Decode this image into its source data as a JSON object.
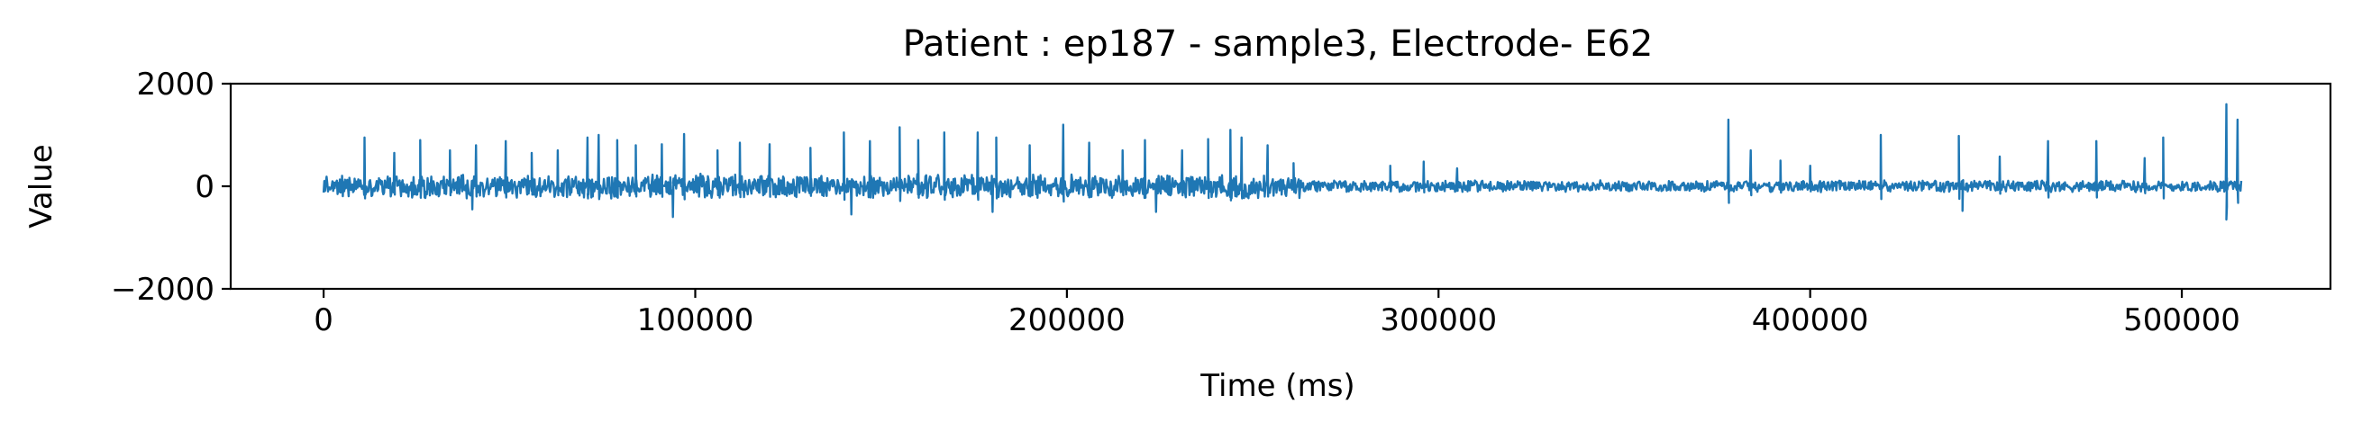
{
  "chart_data": {
    "type": "line",
    "title": "Patient : ep187 - sample3, Electrode- E62",
    "xlabel": "Time (ms)",
    "ylabel": "Value",
    "xlim": [
      -25000,
      540000
    ],
    "ylim": [
      -2000,
      2000
    ],
    "xticks": [
      0,
      100000,
      200000,
      300000,
      400000,
      500000
    ],
    "xtick_labels": [
      "0",
      "100000",
      "200000",
      "300000",
      "400000",
      "500000"
    ],
    "yticks": [
      -2000,
      0,
      2000
    ],
    "ytick_labels": [
      "−2000",
      "0",
      "2000"
    ],
    "grid": false,
    "series": [
      {
        "color": "#1f77b4",
        "x_start": 0,
        "x_end": 516000,
        "baseline_amplitude_first_half": 250,
        "baseline_amplitude_second_half": 120,
        "peaks": [
          {
            "x": 11000,
            "y": 950
          },
          {
            "x": 19000,
            "y": 650
          },
          {
            "x": 26000,
            "y": 900
          },
          {
            "x": 34000,
            "y": 700
          },
          {
            "x": 41000,
            "y": 800
          },
          {
            "x": 49000,
            "y": 880
          },
          {
            "x": 56000,
            "y": 650
          },
          {
            "x": 63000,
            "y": 700
          },
          {
            "x": 71000,
            "y": 950
          },
          {
            "x": 74000,
            "y": 1000
          },
          {
            "x": 79000,
            "y": 900
          },
          {
            "x": 84000,
            "y": 800
          },
          {
            "x": 91000,
            "y": 820
          },
          {
            "x": 97000,
            "y": 1020
          },
          {
            "x": 106000,
            "y": 700
          },
          {
            "x": 112000,
            "y": 850
          },
          {
            "x": 120000,
            "y": 820
          },
          {
            "x": 131000,
            "y": 750
          },
          {
            "x": 140000,
            "y": 1050
          },
          {
            "x": 147000,
            "y": 880
          },
          {
            "x": 155000,
            "y": 1150
          },
          {
            "x": 160000,
            "y": 900
          },
          {
            "x": 167000,
            "y": 1050
          },
          {
            "x": 176000,
            "y": 1050
          },
          {
            "x": 181000,
            "y": 950
          },
          {
            "x": 190000,
            "y": 800
          },
          {
            "x": 199000,
            "y": 1200
          },
          {
            "x": 206000,
            "y": 850
          },
          {
            "x": 215000,
            "y": 700
          },
          {
            "x": 221000,
            "y": 900
          },
          {
            "x": 231000,
            "y": 700
          },
          {
            "x": 238000,
            "y": 920
          },
          {
            "x": 244000,
            "y": 1100
          },
          {
            "x": 247000,
            "y": 950
          },
          {
            "x": 254000,
            "y": 800
          },
          {
            "x": 261000,
            "y": 450
          },
          {
            "x": 287000,
            "y": 400
          },
          {
            "x": 296000,
            "y": 480
          },
          {
            "x": 305000,
            "y": 350
          },
          {
            "x": 378000,
            "y": 1300
          },
          {
            "x": 384000,
            "y": 700
          },
          {
            "x": 392000,
            "y": 500
          },
          {
            "x": 400000,
            "y": 400
          },
          {
            "x": 419000,
            "y": 1000
          },
          {
            "x": 440000,
            "y": 980
          },
          {
            "x": 451000,
            "y": 580
          },
          {
            "x": 464000,
            "y": 880
          },
          {
            "x": 477000,
            "y": 880
          },
          {
            "x": 490000,
            "y": 550
          },
          {
            "x": 495000,
            "y": 950
          },
          {
            "x": 512000,
            "y": 1600
          },
          {
            "x": 515000,
            "y": 1300
          }
        ],
        "troughs": [
          {
            "x": 94000,
            "y": -600
          },
          {
            "x": 142000,
            "y": -550
          },
          {
            "x": 224000,
            "y": -500
          },
          {
            "x": 512000,
            "y": -650
          },
          {
            "x": 40000,
            "y": -450
          },
          {
            "x": 180000,
            "y": -500
          },
          {
            "x": 441000,
            "y": -480
          }
        ]
      }
    ]
  }
}
